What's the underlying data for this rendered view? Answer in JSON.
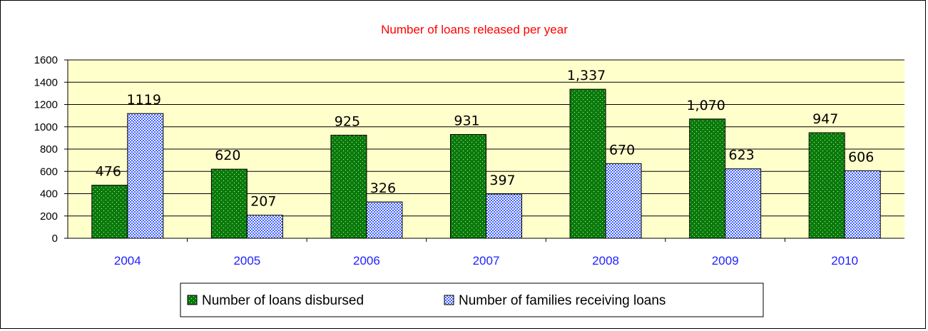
{
  "chart_data": {
    "type": "bar",
    "title": "Number of loans released per year",
    "categories": [
      "2004",
      "2005",
      "2006",
      "2007",
      "2008",
      "2009",
      "2010"
    ],
    "series": [
      {
        "name": "Number of loans disbursed",
        "values": [
          476,
          620,
          925,
          931,
          1337,
          1070,
          947
        ],
        "labels": [
          "476",
          "620",
          "925",
          "931",
          "1,337",
          "1,070",
          "947"
        ],
        "color": "#0a7a0a"
      },
      {
        "name": "Number of families receiving loans",
        "values": [
          1119,
          207,
          326,
          397,
          670,
          623,
          606
        ],
        "labels": [
          "1119",
          "207",
          "326",
          "397",
          "670",
          "623",
          "606"
        ],
        "color": "#3f5fff"
      }
    ],
    "yticks": [
      "0",
      "200",
      "400",
      "600",
      "800",
      "1000",
      "1200",
      "1400",
      "1600"
    ],
    "ylim": [
      0,
      1600
    ],
    "grid": true,
    "plot_background": "#ffffcc",
    "legend_position": "bottom"
  }
}
